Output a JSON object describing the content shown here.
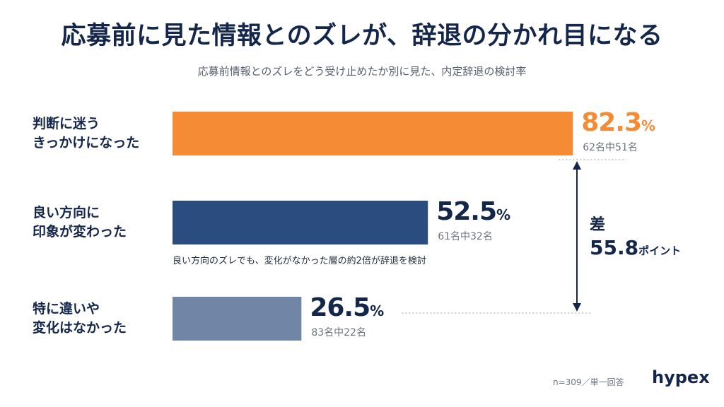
{
  "title": "応募前に見た情報とのズレが、辞退の分かれ目になる",
  "subtitle": "応募前情報とのズレをどう受け止めたか別に見た、内定辞退の検討率",
  "chart_data": {
    "type": "bar",
    "orientation": "horizontal",
    "categories": [
      "判断に迷う\nきっかけになった",
      "良い方向に\n印象が変わった",
      "特に違いや\n変化はなかった"
    ],
    "values": [
      82.3,
      52.5,
      26.5
    ],
    "value_labels": [
      "82.3",
      "52.5",
      "26.5"
    ],
    "unit": "%",
    "counts": [
      "62名中51名",
      "61名中32名",
      "83名中22名"
    ],
    "colors": [
      "#f68b35",
      "#2b4c7e",
      "#7186a7"
    ],
    "value_colors": [
      "#f68b35",
      "#14264a",
      "#14264a"
    ],
    "xlim": [
      0,
      100
    ],
    "annotation": "良い方向のズレでも、変化がなかった層の約2倍が辞退を検討",
    "difference": {
      "label": "差",
      "value": "55.8",
      "unit": "ポイント"
    }
  },
  "footer": {
    "note": "n=309／単一回答",
    "brand": "hypex"
  }
}
